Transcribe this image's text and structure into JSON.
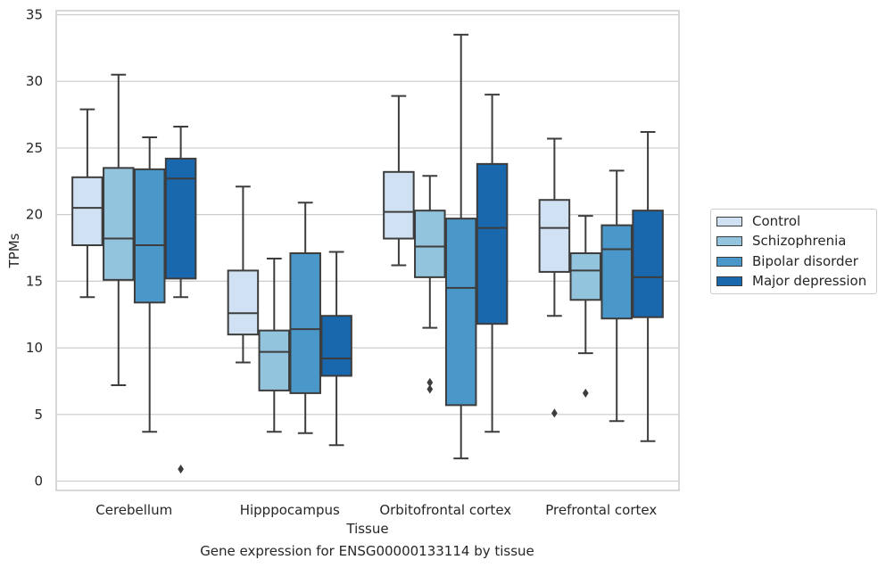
{
  "chart_data": {
    "type": "box",
    "xlabel": "Tissue",
    "ylabel": "TPMs",
    "ylim": [
      -0.7,
      35.3
    ],
    "yticks": [
      0,
      5,
      10,
      15,
      20,
      25,
      30,
      35
    ],
    "grid": "horizontal",
    "legend_position": "right",
    "categories": [
      "Cerebellum",
      "Hipppocampus",
      "Orbitofrontal cortex",
      "Prefrontal cortex"
    ],
    "series": [
      {
        "name": "Control",
        "color": "#cfe1f2",
        "boxes": [
          {
            "min": 13.8,
            "q1": 17.7,
            "median": 20.5,
            "q3": 22.8,
            "max": 27.9,
            "outliers": []
          },
          {
            "min": 8.9,
            "q1": 11.0,
            "median": 12.6,
            "q3": 15.8,
            "max": 22.1,
            "outliers": []
          },
          {
            "min": 16.2,
            "q1": 18.2,
            "median": 20.2,
            "q3": 23.2,
            "max": 28.9,
            "outliers": []
          },
          {
            "min": 12.4,
            "q1": 15.7,
            "median": 19.0,
            "q3": 21.1,
            "max": 25.7,
            "outliers": [
              5.1
            ]
          }
        ]
      },
      {
        "name": "Schizophrenia",
        "color": "#93c4de",
        "boxes": [
          {
            "min": 7.2,
            "q1": 15.1,
            "median": 18.2,
            "q3": 23.5,
            "max": 30.5,
            "outliers": []
          },
          {
            "min": 3.7,
            "q1": 6.8,
            "median": 9.7,
            "q3": 11.3,
            "max": 16.7,
            "outliers": []
          },
          {
            "min": 11.5,
            "q1": 15.3,
            "median": 17.6,
            "q3": 20.3,
            "max": 22.9,
            "outliers": [
              7.4,
              6.9
            ]
          },
          {
            "min": 9.6,
            "q1": 13.6,
            "median": 15.8,
            "q3": 17.1,
            "max": 19.9,
            "outliers": [
              6.6
            ]
          }
        ]
      },
      {
        "name": "Bipolar disorder",
        "color": "#4a98c9",
        "boxes": [
          {
            "min": 3.7,
            "q1": 13.4,
            "median": 17.7,
            "q3": 23.4,
            "max": 25.8,
            "outliers": []
          },
          {
            "min": 3.6,
            "q1": 6.6,
            "median": 11.4,
            "q3": 17.1,
            "max": 20.9,
            "outliers": []
          },
          {
            "min": 1.7,
            "q1": 5.7,
            "median": 14.5,
            "q3": 19.7,
            "max": 33.5,
            "outliers": []
          },
          {
            "min": 4.5,
            "q1": 12.2,
            "median": 17.4,
            "q3": 19.2,
            "max": 23.3,
            "outliers": []
          }
        ]
      },
      {
        "name": "Major depression",
        "color": "#1967ad",
        "boxes": [
          {
            "min": 13.8,
            "q1": 15.2,
            "median": 22.7,
            "q3": 24.2,
            "max": 26.6,
            "outliers": [
              0.9
            ]
          },
          {
            "min": 2.7,
            "q1": 7.9,
            "median": 9.2,
            "q3": 12.4,
            "max": 17.2,
            "outliers": []
          },
          {
            "min": 3.7,
            "q1": 11.8,
            "median": 19.0,
            "q3": 23.8,
            "max": 29.0,
            "outliers": []
          },
          {
            "min": 3.0,
            "q1": 12.3,
            "median": 15.3,
            "q3": 20.3,
            "max": 26.2,
            "outliers": []
          }
        ]
      }
    ]
  },
  "caption": "Gene expression for ENSG00000133114 by tissue"
}
